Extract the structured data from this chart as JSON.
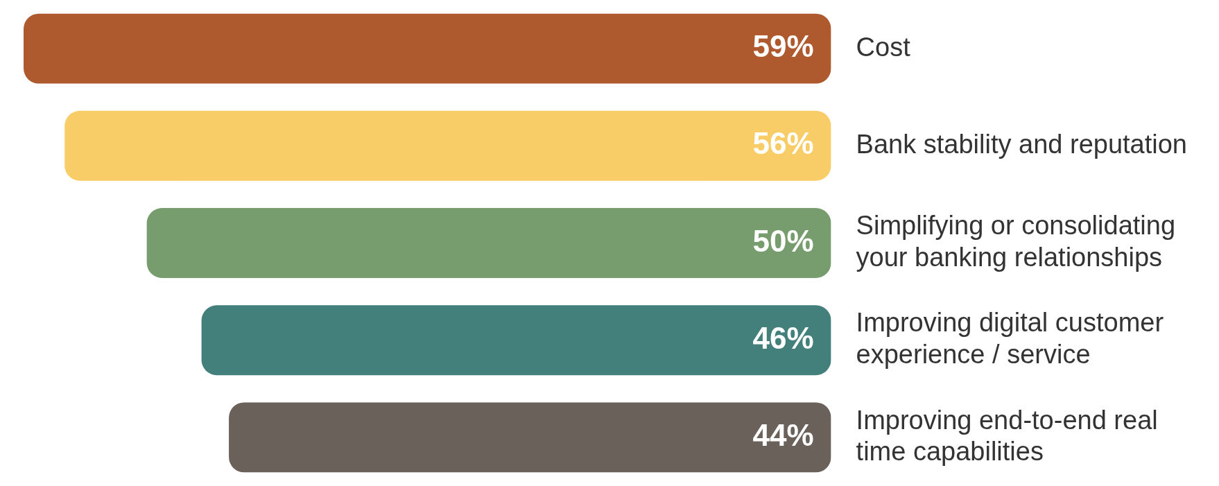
{
  "chart_data": {
    "type": "bar",
    "orientation": "horizontal",
    "categories": [
      "Cost",
      "Bank stability and reputation",
      "Simplifying or consolidating your banking relationships",
      "Improving digital customer experience / service",
      "Improving end-to-end real time capabilities"
    ],
    "values": [
      59,
      56,
      50,
      46,
      44
    ],
    "colors": [
      "#ae5a2e",
      "#f8cc66",
      "#779c6d",
      "#43807b",
      "#6a615b"
    ],
    "value_labels": [
      "59%",
      "56%",
      "50%",
      "46%",
      "44%"
    ],
    "xlim": [
      59,
      0
    ],
    "tick_labels": "y"
  }
}
